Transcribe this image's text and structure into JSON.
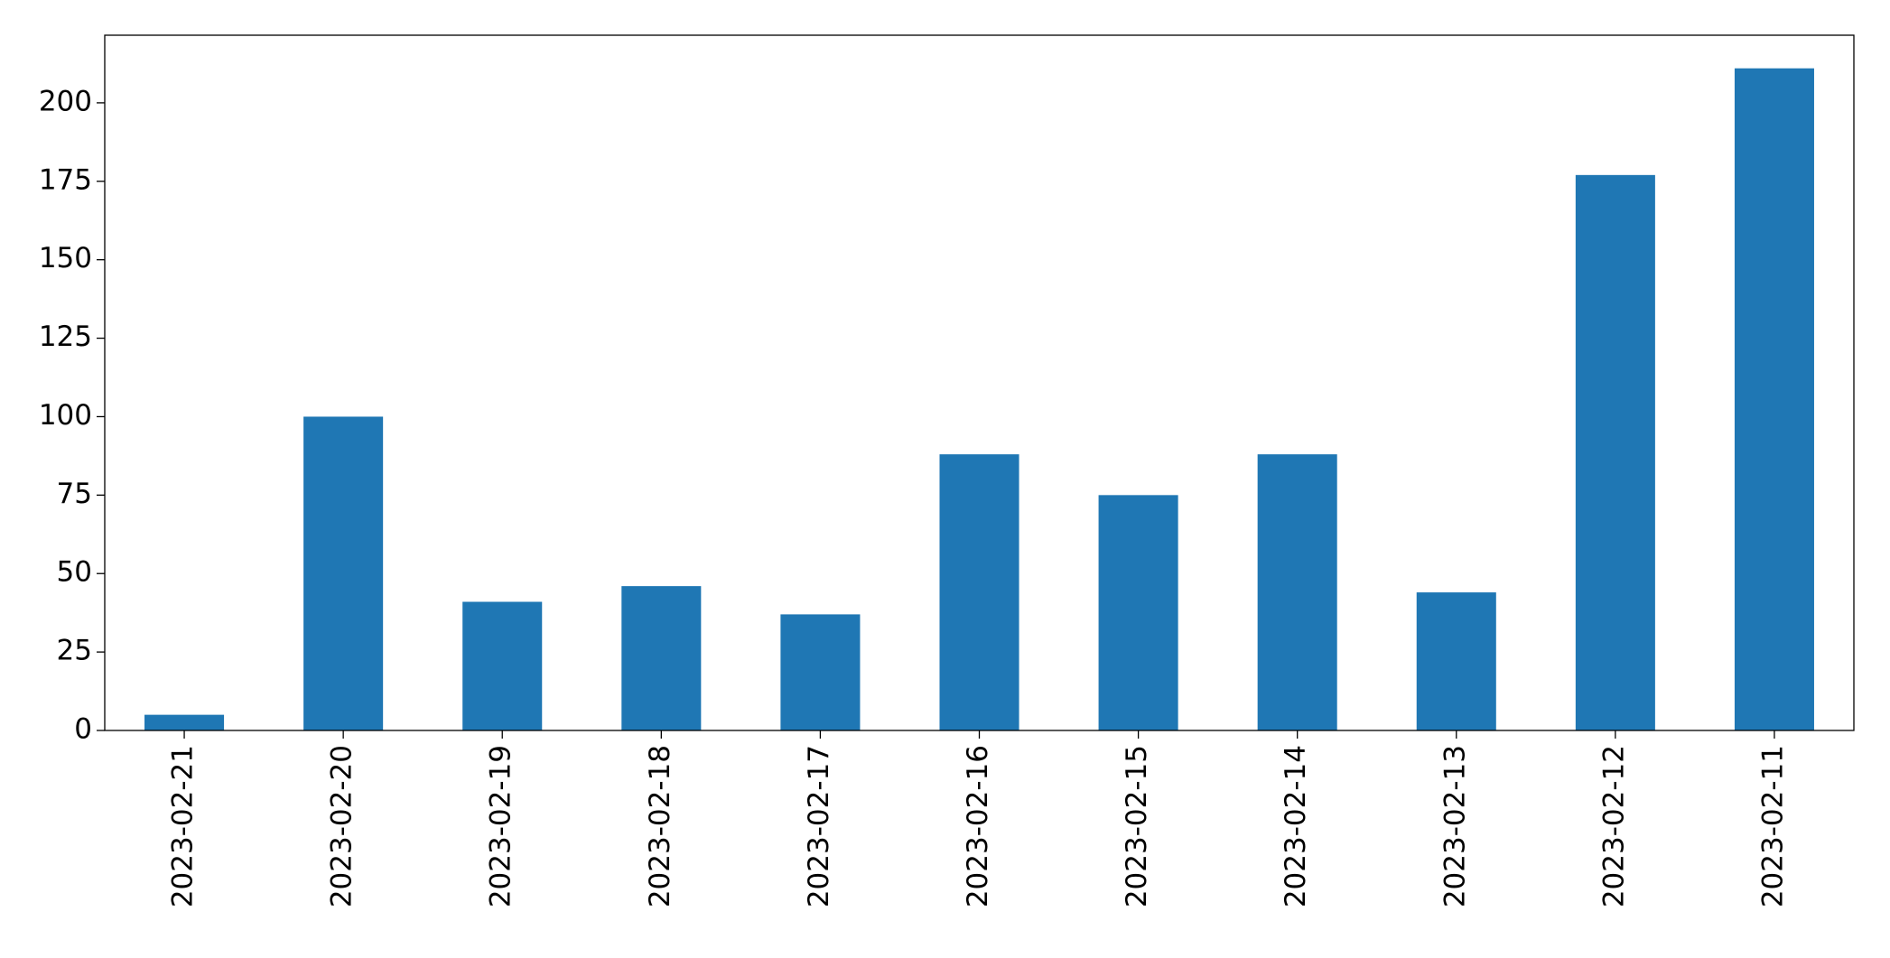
{
  "chart_data": {
    "type": "bar",
    "categories": [
      "2023-02-21",
      "2023-02-20",
      "2023-02-19",
      "2023-02-18",
      "2023-02-17",
      "2023-02-16",
      "2023-02-15",
      "2023-02-14",
      "2023-02-13",
      "2023-02-12",
      "2023-02-11"
    ],
    "values": [
      5,
      100,
      41,
      46,
      37,
      88,
      75,
      88,
      44,
      177,
      211
    ],
    "color": "#1f77b4",
    "ylim": [
      0,
      221.55
    ],
    "yticks": [
      0,
      25,
      50,
      75,
      100,
      125,
      150,
      175,
      200
    ],
    "grid": false
  }
}
